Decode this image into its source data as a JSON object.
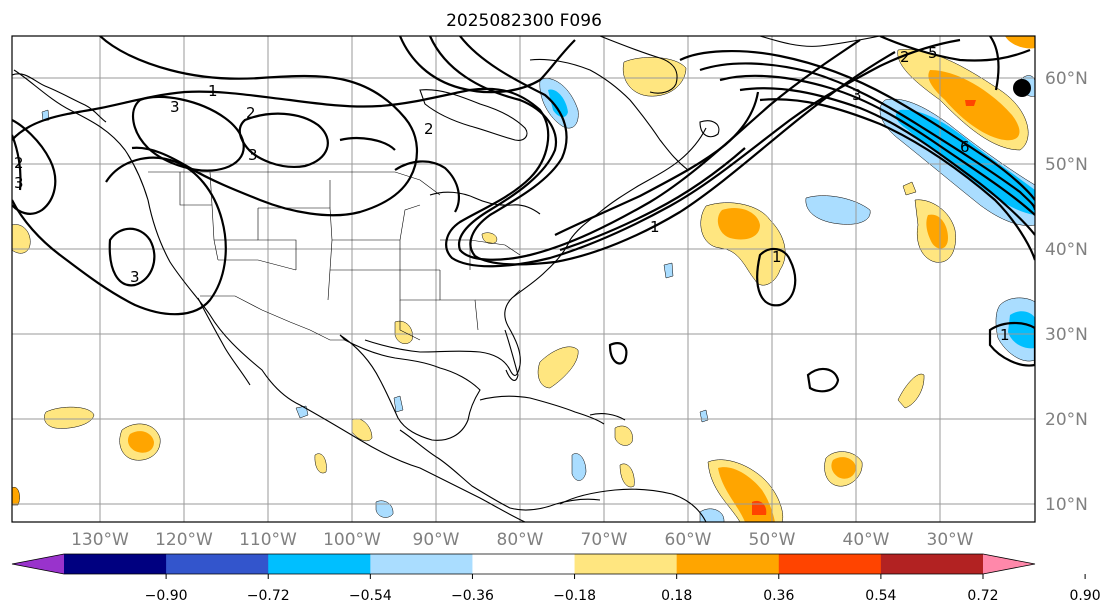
{
  "title": "2025082300 F096",
  "longitude_labels": [
    "130°W",
    "120°W",
    "110°W",
    "100°W",
    "90°W",
    "80°W",
    "70°W",
    "60°W",
    "50°W",
    "40°W",
    "30°W"
  ],
  "latitude_labels": [
    "60°N",
    "50°N",
    "40°N",
    "30°N",
    "20°N",
    "10°N"
  ],
  "contour_labels": [
    "1",
    "2",
    "3",
    "3",
    "3",
    "2",
    "2",
    "3",
    "1",
    "1",
    "6",
    "5",
    "1",
    "2",
    "3"
  ],
  "colorbar": {
    "tick_labels": [
      "−0.90",
      "−0.72",
      "−0.54",
      "−0.36",
      "−0.18",
      "0.18",
      "0.36",
      "0.54",
      "0.72",
      "0.90"
    ],
    "colors": [
      "#9933cc",
      "#000080",
      "#3355cc",
      "#00bfff",
      "#aaddff",
      "#ffffff",
      "#ffe680",
      "#ffa500",
      "#ff4400",
      "#b22222",
      "#ff88aa"
    ]
  },
  "shading_colors": {
    "pos_light": "#ffe680",
    "pos_mid": "#ffa500",
    "pos_high": "#ff4400",
    "neg_light": "#aaddff",
    "neg_mid": "#00bfff"
  }
}
